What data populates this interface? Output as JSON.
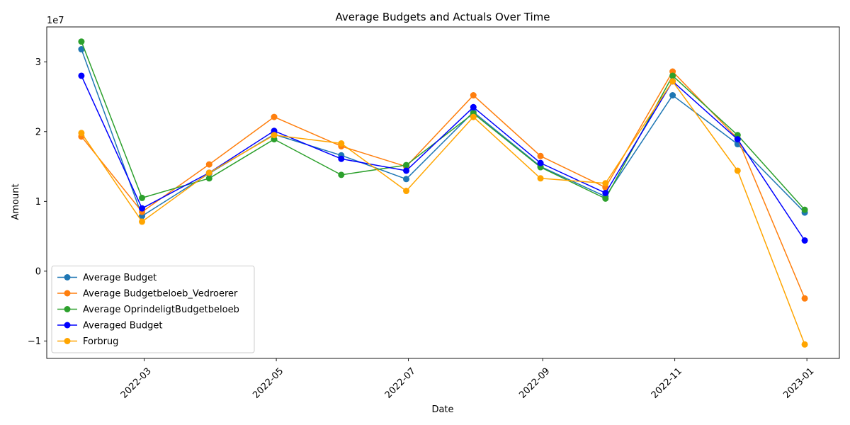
{
  "chart_data": {
    "type": "line",
    "title": "Average Budgets and Actuals Over Time",
    "xlabel": "Date",
    "ylabel": "Amount",
    "y_offset_label": "1e7",
    "x": [
      "2022-01-31",
      "2022-02-28",
      "2022-03-31",
      "2022-04-30",
      "2022-05-31",
      "2022-06-30",
      "2022-07-31",
      "2022-08-31",
      "2022-09-30",
      "2022-10-31",
      "2022-11-30",
      "2022-12-31"
    ],
    "xlim": [
      "2022-01-15",
      "2023-01-16"
    ],
    "ylim": [
      -12500000,
      35000000
    ],
    "x_ticks": [
      {
        "date": "2022-03-01",
        "label": "2022-03"
      },
      {
        "date": "2022-05-01",
        "label": "2022-05"
      },
      {
        "date": "2022-07-01",
        "label": "2022-07"
      },
      {
        "date": "2022-09-01",
        "label": "2022-09"
      },
      {
        "date": "2022-11-01",
        "label": "2022-11"
      },
      {
        "date": "2023-01-01",
        "label": "2023-01"
      }
    ],
    "y_ticks": [
      {
        "value": -10000000,
        "label": "−1"
      },
      {
        "value": 0,
        "label": "0"
      },
      {
        "value": 10000000,
        "label": "1"
      },
      {
        "value": 20000000,
        "label": "2"
      },
      {
        "value": 30000000,
        "label": "3"
      }
    ],
    "grid": false,
    "legend_position": "lower-left",
    "series": [
      {
        "name": "Average Budget",
        "color": "#1f77b4",
        "values": [
          31800000,
          7900000,
          14000000,
          19600000,
          16600000,
          13200000,
          22800000,
          15000000,
          10700000,
          25200000,
          18200000,
          8400000
        ]
      },
      {
        "name": "Average Budgetbeloeb_Vedroerer",
        "color": "#ff7f0e",
        "values": [
          19300000,
          8500000,
          15300000,
          22100000,
          17900000,
          15000000,
          25200000,
          16500000,
          12000000,
          28600000,
          19000000,
          -3900000
        ]
      },
      {
        "name": "Average OprindeligtBudgetbeloeb",
        "color": "#2ca02c",
        "values": [
          32900000,
          10500000,
          13300000,
          18900000,
          13800000,
          15200000,
          22600000,
          14900000,
          10400000,
          28000000,
          19500000,
          8800000
        ]
      },
      {
        "name": "Averaged Budget",
        "color": "#0000ff",
        "values": [
          28000000,
          9000000,
          14100000,
          20100000,
          16100000,
          14400000,
          23500000,
          15500000,
          11200000,
          27200000,
          18900000,
          4400000
        ]
      },
      {
        "name": "Forbrug",
        "color": "#ffa500",
        "values": [
          19800000,
          7100000,
          14100000,
          19500000,
          18300000,
          11500000,
          22100000,
          13300000,
          12600000,
          27200000,
          14400000,
          -10500000
        ]
      }
    ]
  }
}
